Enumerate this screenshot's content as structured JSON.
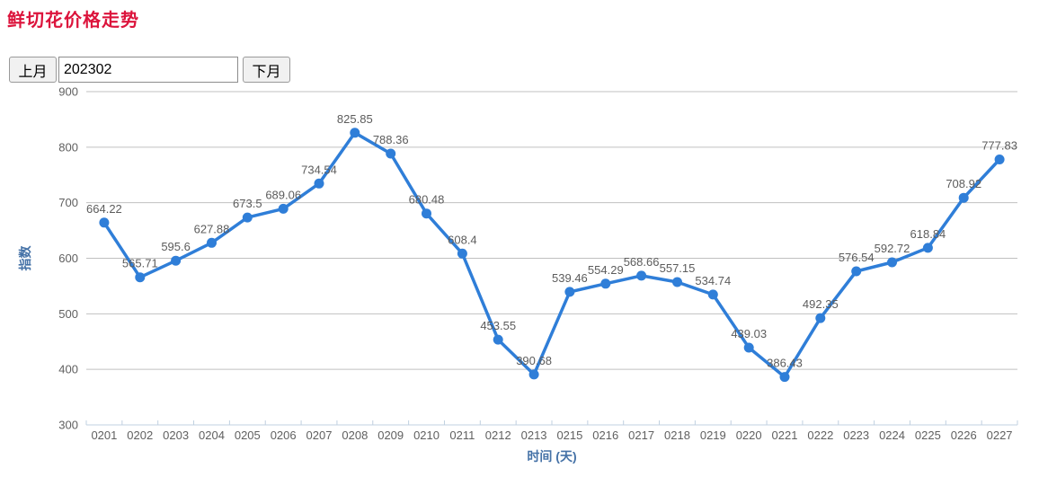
{
  "page": {
    "title": "鲜切花价格走势"
  },
  "controls": {
    "prev_button": "上月",
    "month_input_value": "202302",
    "next_button": "下月"
  },
  "chart_data": {
    "type": "line",
    "categories": [
      "0201",
      "0202",
      "0203",
      "0204",
      "0205",
      "0206",
      "0207",
      "0208",
      "0209",
      "0210",
      "0211",
      "0212",
      "0213",
      "0215",
      "0216",
      "0217",
      "0218",
      "0219",
      "0220",
      "0221",
      "0222",
      "0223",
      "0224",
      "0225",
      "0226",
      "0227"
    ],
    "values": [
      664.22,
      565.71,
      595.6,
      627.88,
      673.5,
      689.06,
      734.54,
      825.85,
      788.36,
      680.48,
      608.4,
      453.55,
      390.68,
      539.46,
      554.29,
      568.66,
      557.15,
      534.74,
      439.03,
      386.43,
      492.35,
      576.54,
      592.72,
      618.84,
      708.92,
      777.83
    ],
    "xlabel": "时间 (天)",
    "ylabel": "指数",
    "ylim": [
      300,
      900
    ],
    "ytick_step": 100,
    "yticks": [
      300,
      400,
      500,
      600,
      700,
      800,
      900
    ],
    "grid": true,
    "legend": false,
    "marker": "circle",
    "data_labels": true
  },
  "colors": {
    "title_red": "#dc143c",
    "line_blue": "#2f7ed8",
    "axis_title_blue": "#4572a7",
    "tick_label_gray": "#606060",
    "data_label_gray": "#5c5c5c",
    "gridline_gray": "#c0c0c0",
    "axis_line_blue": "#c0d0e0"
  }
}
